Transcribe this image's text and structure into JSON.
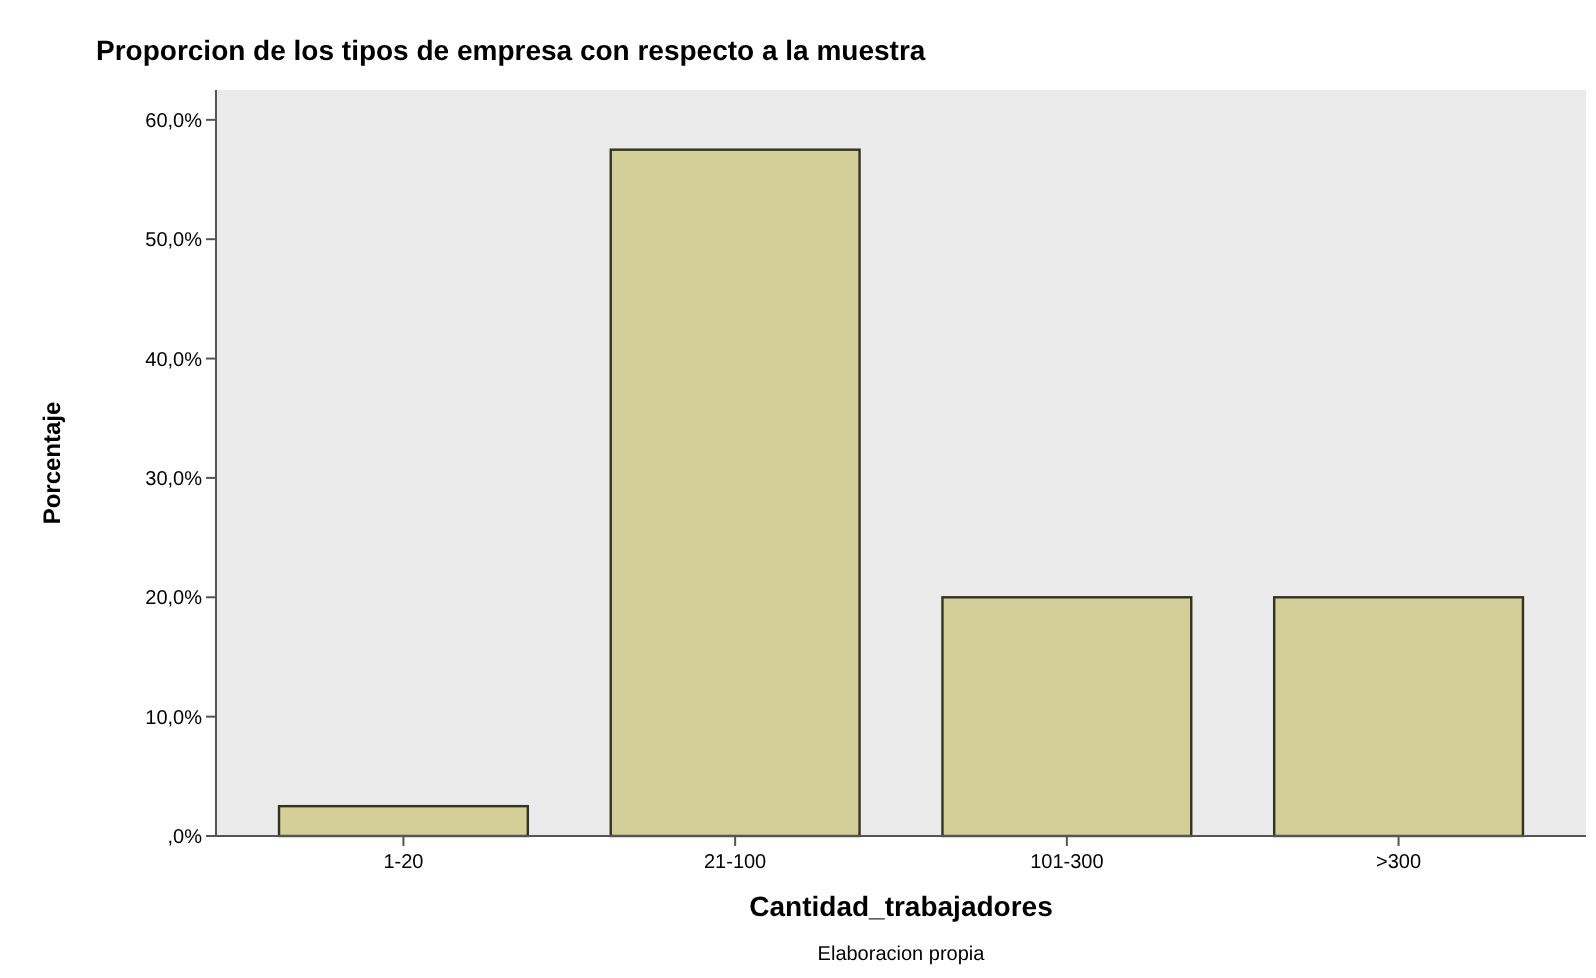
{
  "chart_data": {
    "type": "bar",
    "title": "Proporcion de los tipos de empresa con respecto a la muestra",
    "xlabel": "Cantidad_trabajadores",
    "ylabel": "Porcentaje",
    "categories": [
      "1-20",
      "21-100",
      "101-300",
      ">300"
    ],
    "values": [
      2.5,
      57.5,
      20,
      20
    ],
    "color": "#d4cf99",
    "ylim": [
      0,
      62.5
    ],
    "yticks": [
      {
        "value": 0,
        "label": ",0%"
      },
      {
        "value": 10,
        "label": "10,0%"
      },
      {
        "value": 20,
        "label": "20,0%"
      },
      {
        "value": 30,
        "label": "30,0%"
      },
      {
        "value": 40,
        "label": "40,0%"
      },
      {
        "value": 50,
        "label": "50,0%"
      },
      {
        "value": 60,
        "label": "60,0%"
      }
    ],
    "grid": false,
    "annotations": [
      "Elaboracion propia"
    ]
  }
}
